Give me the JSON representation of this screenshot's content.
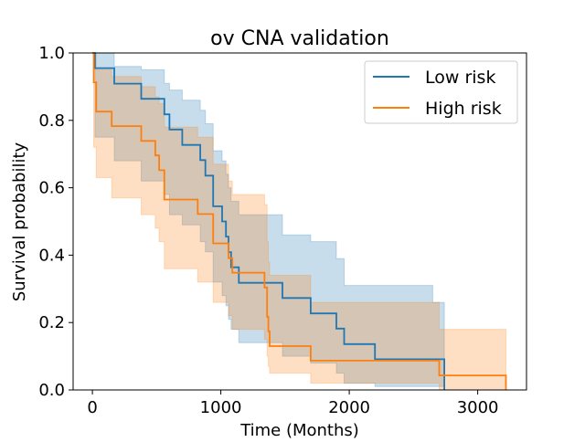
{
  "chart_data": {
    "type": "line",
    "subtype": "kaplan-meier",
    "title": "ov CNA validation",
    "xlabel": "Time (Months)",
    "ylabel": "Survival probability",
    "xlim": [
      -150,
      3380
    ],
    "ylim": [
      0.0,
      1.0
    ],
    "xticks": [
      0,
      1000,
      2000,
      3000
    ],
    "xtick_labels": [
      "0",
      "1000",
      "2000",
      "3000"
    ],
    "yticks": [
      0.0,
      0.2,
      0.4,
      0.6,
      0.8,
      1.0
    ],
    "ytick_labels": [
      "0.0",
      "0.2",
      "0.4",
      "0.6",
      "0.8",
      "1.0"
    ],
    "grid": false,
    "legend": {
      "position": "top-right",
      "entries": [
        "Low risk",
        "High risk"
      ]
    },
    "series": [
      {
        "name": "Low risk",
        "color": "#1f77b4",
        "band_color": "#1f77b4",
        "x": [
          0,
          20,
          170,
          380,
          560,
          600,
          630,
          700,
          840,
          860,
          880,
          940,
          990,
          1000,
          1010,
          1040,
          1060,
          1080,
          1110,
          1140,
          1200,
          1290,
          1350,
          1480,
          1530,
          1550,
          1560,
          1700,
          1900,
          1960,
          2200,
          2260,
          2650,
          2740
        ],
        "survival": [
          1.0,
          0.955,
          0.909,
          0.864,
          0.818,
          0.773,
          0.773,
          0.727,
          0.682,
          0.682,
          0.636,
          0.545,
          0.545,
          0.545,
          0.5,
          0.455,
          0.409,
          0.364,
          0.364,
          0.318,
          0.318,
          0.318,
          0.318,
          0.273,
          0.273,
          0.273,
          0.273,
          0.227,
          0.182,
          0.136,
          0.091,
          0.091,
          0.091,
          0.0
        ],
        "upper": [
          1.0,
          1.0,
          0.96,
          0.95,
          0.91,
          0.89,
          0.89,
          0.86,
          0.83,
          0.83,
          0.79,
          0.71,
          0.71,
          0.71,
          0.68,
          0.64,
          0.6,
          0.56,
          0.56,
          0.52,
          0.52,
          0.52,
          0.52,
          0.46,
          0.46,
          0.46,
          0.46,
          0.44,
          0.39,
          0.31,
          0.31,
          0.31,
          0.26,
          0.19
        ],
        "lower": [
          1.0,
          0.75,
          0.68,
          0.62,
          0.58,
          0.52,
          0.52,
          0.49,
          0.44,
          0.44,
          0.41,
          0.32,
          0.32,
          0.32,
          0.28,
          0.25,
          0.21,
          0.18,
          0.18,
          0.14,
          0.14,
          0.14,
          0.14,
          0.1,
          0.1,
          0.1,
          0.1,
          0.08,
          0.05,
          0.02,
          0.01,
          0.01,
          0.01,
          0.0
        ]
      },
      {
        "name": "High risk",
        "color": "#ff7f0e",
        "band_color": "#ff7f0e",
        "x": [
          0,
          10,
          30,
          150,
          380,
          490,
          520,
          560,
          780,
          820,
          940,
          1060,
          1090,
          1120,
          1340,
          1360,
          1370,
          1380,
          1700,
          2200,
          2650,
          2700,
          3220
        ],
        "survival": [
          1.0,
          0.913,
          0.826,
          0.783,
          0.739,
          0.696,
          0.652,
          0.565,
          0.565,
          0.522,
          0.435,
          0.391,
          0.348,
          0.348,
          0.304,
          0.217,
          0.174,
          0.13,
          0.087,
          0.087,
          0.087,
          0.043,
          0.0
        ],
        "upper": [
          1.0,
          1.0,
          0.95,
          0.93,
          0.9,
          0.87,
          0.85,
          0.78,
          0.78,
          0.75,
          0.67,
          0.62,
          0.58,
          0.58,
          0.55,
          0.44,
          0.38,
          0.34,
          0.26,
          0.26,
          0.26,
          0.18,
          0.18
        ],
        "lower": [
          1.0,
          0.72,
          0.63,
          0.57,
          0.52,
          0.48,
          0.44,
          0.36,
          0.36,
          0.32,
          0.26,
          0.22,
          0.18,
          0.18,
          0.15,
          0.1,
          0.07,
          0.05,
          0.02,
          0.02,
          0.02,
          0.0,
          0.0
        ]
      }
    ]
  }
}
